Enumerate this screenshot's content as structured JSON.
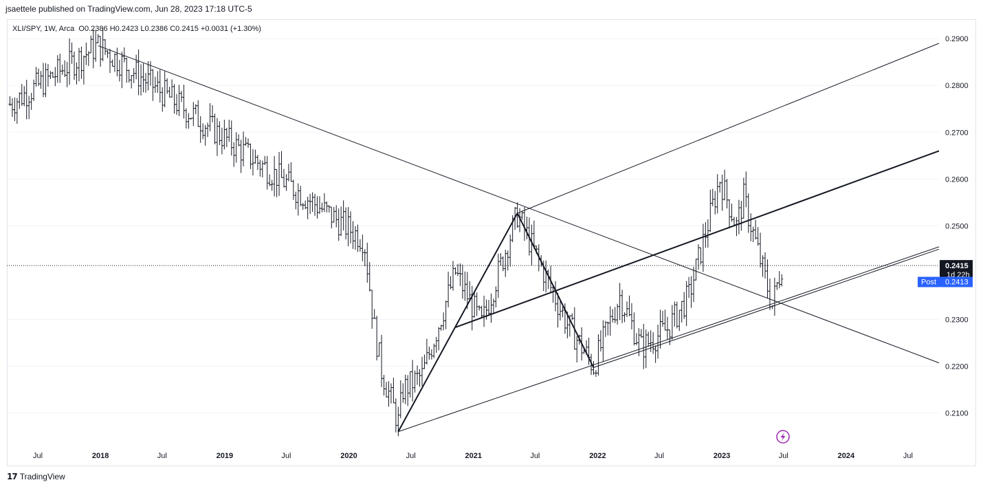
{
  "header": {
    "published_line": "jsaettele published on TradingView.com, Jun 28, 2023 17:18 UTC-5"
  },
  "legend": {
    "symbol": "XLI/SPY, 1W, Arca",
    "open_label": "O",
    "open": "0.2386",
    "high_label": "H",
    "high": "0.2423",
    "low_label": "L",
    "low": "0.2386",
    "close_label": "C",
    "close": "0.2415",
    "change": "+0.0031 (+1.30%)"
  },
  "price_axis": {
    "labels": [
      "0.2900",
      "0.2800",
      "0.2700",
      "0.2600",
      "0.2500",
      "0.2300",
      "0.2200",
      "0.2100"
    ],
    "last_price": "0.2415",
    "countdown": "1d 22h",
    "post_label": "Post",
    "post_price": "0.2413"
  },
  "time_axis": {
    "labels": [
      "Jul",
      "2018",
      "Jul",
      "2019",
      "Jul",
      "2020",
      "Jul",
      "2021",
      "Jul",
      "2022",
      "Jul",
      "2023",
      "Jul",
      "2024",
      "Jul"
    ]
  },
  "footer": {
    "brand": "TradingView"
  },
  "colors": {
    "bars": "#131722",
    "post_badge": "#2962ff",
    "price_badge": "#131722",
    "lightning": "#9c27b0",
    "gridline": "#f0f3fa"
  },
  "chart_data": {
    "type": "ohlc",
    "symbol": "XLI/SPY",
    "interval": "1W",
    "y_range": [
      0.203,
      0.294
    ],
    "x_range": [
      "2017-04-01",
      "2024-09-30"
    ],
    "last_price": 0.2415,
    "post_price": 0.2413,
    "pivots": [
      {
        "date": "2017-12-25",
        "price": 0.2885
      },
      {
        "date": "2020-02-15",
        "price": 0.247
      },
      {
        "date": "2020-03-16",
        "price": 0.228
      },
      {
        "date": "2020-04-06",
        "price": 0.219
      },
      {
        "date": "2020-05-25",
        "price": 0.208
      },
      {
        "date": "2020-06-08",
        "price": 0.215
      },
      {
        "date": "2020-08-03",
        "price": 0.218
      },
      {
        "date": "2020-11-09",
        "price": 0.24
      },
      {
        "date": "2021-01-25",
        "price": 0.229
      },
      {
        "date": "2021-05-10",
        "price": 0.2525
      },
      {
        "date": "2021-08-02",
        "price": 0.239
      },
      {
        "date": "2021-10-04",
        "price": 0.229
      },
      {
        "date": "2021-12-20",
        "price": 0.22
      },
      {
        "date": "2022-03-07",
        "price": 0.235
      },
      {
        "date": "2022-05-09",
        "price": 0.224
      },
      {
        "date": "2022-07-25",
        "price": 0.228
      },
      {
        "date": "2022-09-26",
        "price": 0.235
      },
      {
        "date": "2022-12-26",
        "price": 0.26
      },
      {
        "date": "2023-02-13",
        "price": 0.25
      },
      {
        "date": "2023-03-06",
        "price": 0.256
      },
      {
        "date": "2023-05-29",
        "price": 0.233
      },
      {
        "date": "2023-06-26",
        "price": 0.2415
      }
    ],
    "lines": [
      {
        "from": {
          "date": "2017-12-25",
          "price": 0.2885
        },
        "to": {
          "date": "2024-09-30",
          "price": 0.2207
        },
        "width": 1
      },
      {
        "from": {
          "date": "2021-05-10",
          "price": 0.2527
        },
        "to": {
          "date": "2024-09-30",
          "price": 0.289
        },
        "width": 1
      },
      {
        "from": {
          "date": "2020-05-25",
          "price": 0.206
        },
        "to": {
          "date": "2024-09-30",
          "price": 0.2455
        },
        "width": 1
      },
      {
        "from": {
          "date": "2021-12-20",
          "price": 0.2197
        },
        "to": {
          "date": "2024-09-30",
          "price": 0.245
        },
        "width": 1
      },
      {
        "from": {
          "date": "2020-11-09",
          "price": 0.2283
        },
        "to": {
          "date": "2024-09-30",
          "price": 0.266
        },
        "width": 2
      },
      {
        "from": {
          "date": "2020-05-25",
          "price": 0.206
        },
        "to": {
          "date": "2021-05-10",
          "price": 0.2527
        },
        "width": 2
      },
      {
        "from": {
          "date": "2021-05-10",
          "price": 0.2527
        },
        "to": {
          "date": "2021-12-20",
          "price": 0.2197
        },
        "width": 2
      }
    ]
  }
}
